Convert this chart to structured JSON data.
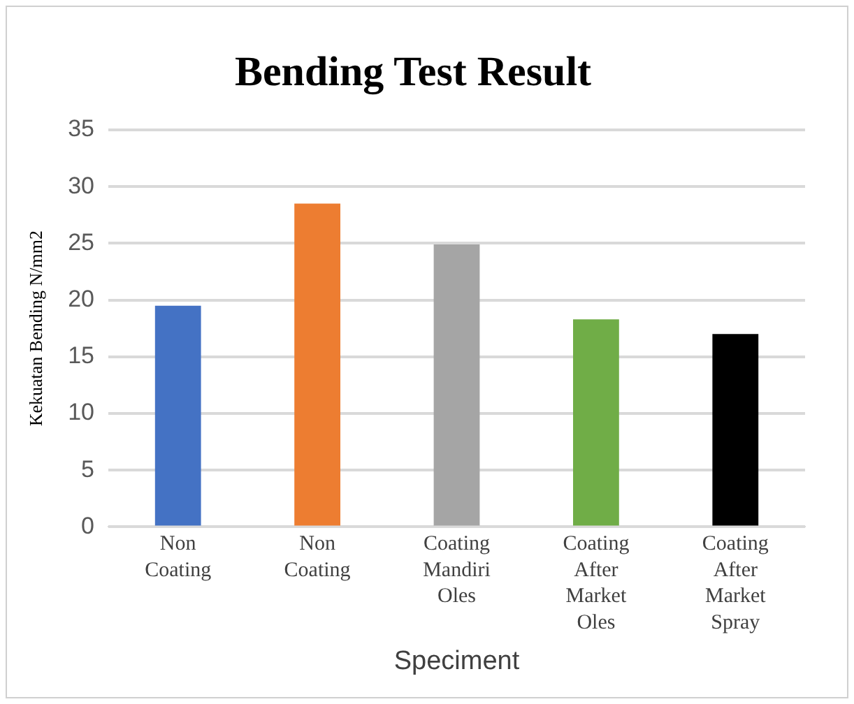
{
  "chart_data": {
    "type": "bar",
    "title": "Bending Test Result",
    "xlabel": "Speciment",
    "ylabel": "Kekuatan Bending N/mm2",
    "categories": [
      "Non Coating",
      "Non Coating",
      "Coating Mandiri Oles",
      "Coating After Market Oles",
      "Coating After Market Spray"
    ],
    "values": [
      19.5,
      28.5,
      24.9,
      18.3,
      17.0
    ],
    "colors": [
      "#4472c4",
      "#ed7d31",
      "#a5a5a5",
      "#70ad47",
      "#000000"
    ],
    "ylim": [
      0,
      35
    ],
    "yticks": [
      0,
      5,
      10,
      15,
      20,
      25,
      30,
      35
    ],
    "grid": "y",
    "legend": false
  }
}
